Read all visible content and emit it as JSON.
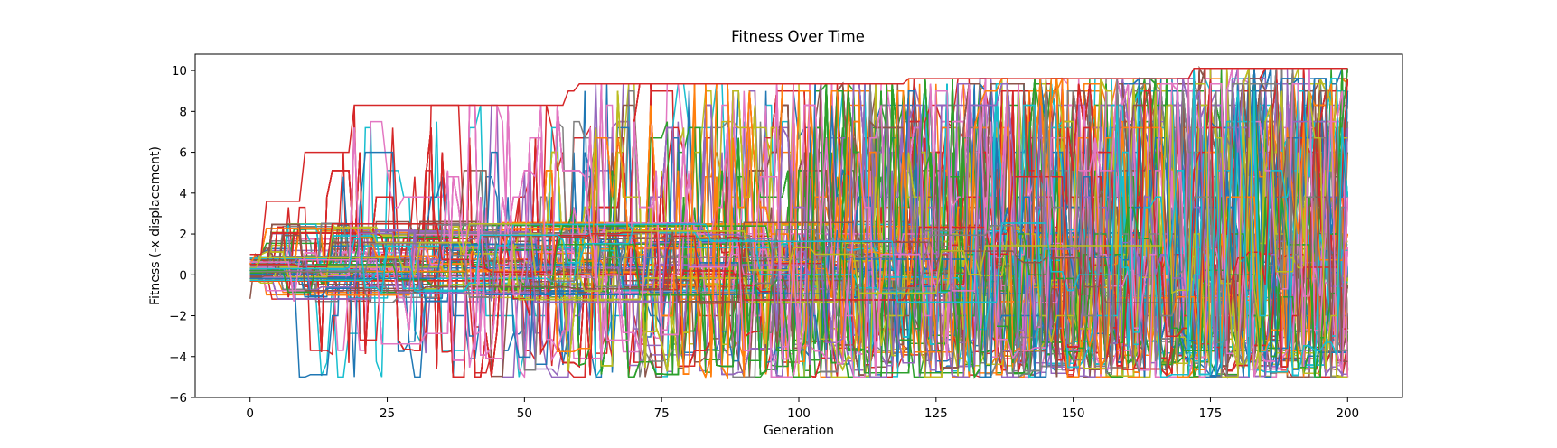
{
  "chart_data": {
    "type": "line",
    "title": "Fitness Over Time",
    "xlabel": "Generation",
    "ylabel": "Fitness (-x displacement)",
    "xlim": [
      -10,
      210
    ],
    "ylim": [
      -6,
      10.8
    ],
    "xticks": [
      0,
      25,
      50,
      75,
      100,
      125,
      150,
      175,
      200
    ],
    "yticks": [
      -6,
      -4,
      -2,
      0,
      2,
      4,
      6,
      8,
      10
    ],
    "grid": false,
    "legend": "none",
    "generations": 201,
    "series_count": 240,
    "best_envelope": {
      "x": [
        0,
        3,
        10,
        19,
        57,
        58,
        60,
        120,
        172,
        200
      ],
      "y": [
        1.0,
        3.6,
        6.0,
        8.3,
        8.3,
        9.0,
        9.35,
        9.6,
        10.1,
        10.1
      ]
    },
    "key_levels": [
      -5.0,
      -3.7,
      -2.0,
      0.0,
      1.0,
      2.0,
      3.3,
      3.8,
      4.8,
      5.1,
      6.0,
      6.7,
      7.2,
      7.5,
      8.3,
      9.0,
      9.35,
      9.6,
      10.1
    ],
    "colors": [
      "#1f77b4",
      "#ff7f0e",
      "#2ca02c",
      "#d62728",
      "#9467bd",
      "#8c564b",
      "#e377c2",
      "#7f7f7f",
      "#bcbd22",
      "#17becf"
    ]
  }
}
